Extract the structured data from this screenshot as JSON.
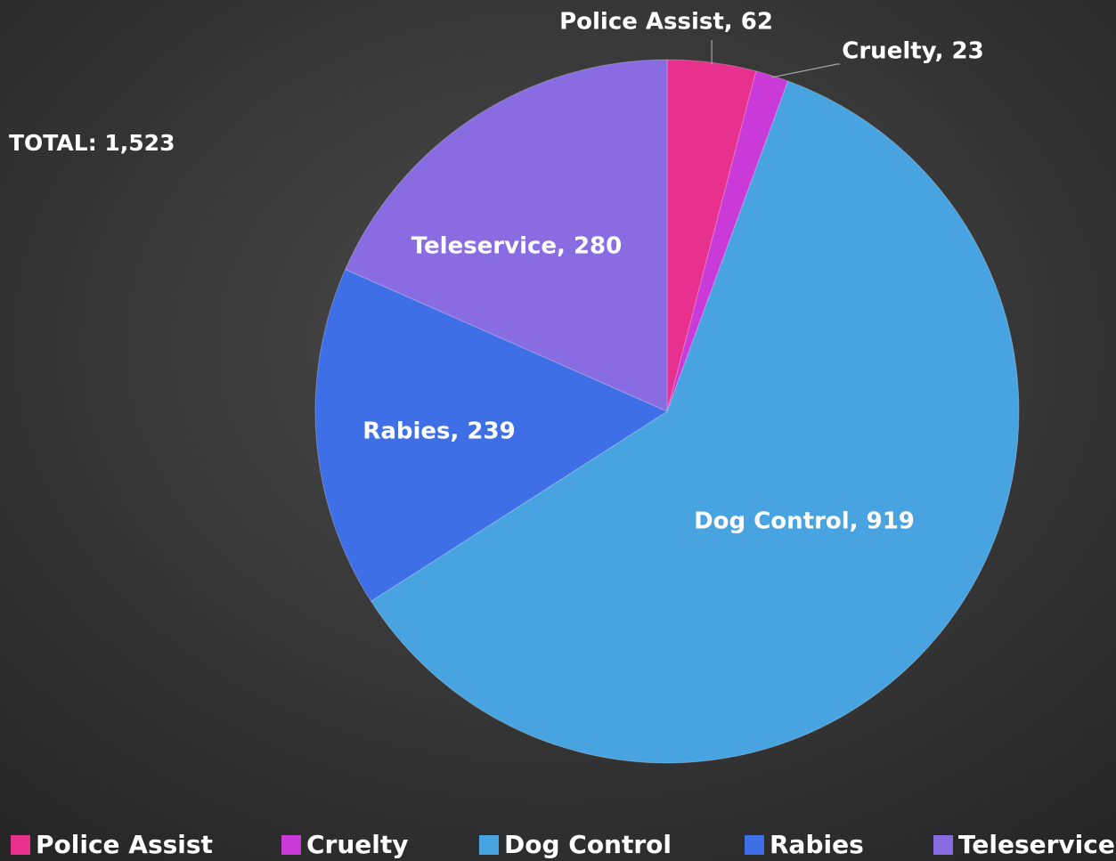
{
  "chart_data": {
    "type": "pie",
    "annotation": "TOTAL:  1,523",
    "categories": [
      "Police Assist",
      "Cruelty",
      "Dog Control",
      "Rabies",
      "Teleservice"
    ],
    "values": [
      62,
      23,
      919,
      239,
      280
    ],
    "value_labels": [
      "Police Assist, 62",
      "Cruelty, 23",
      "Dog Control, 919",
      "Rabies, 239",
      "Teleservice, 280"
    ],
    "colors": [
      "#e8318f",
      "#c93ad8",
      "#47a4e1",
      "#3e6fe6",
      "#8a6ce2"
    ],
    "legend": "bottom"
  }
}
